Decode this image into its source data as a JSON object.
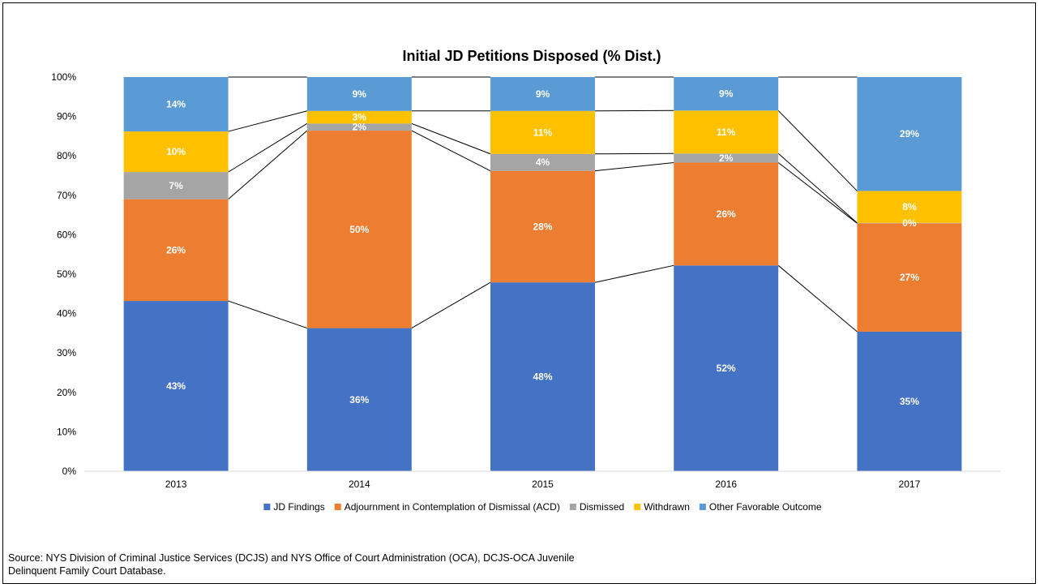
{
  "chart_data": {
    "type": "bar",
    "stacked": true,
    "title": "Initial JD Petitions Disposed (% Dist.)",
    "xlabel": "",
    "ylabel": "",
    "ylim": [
      0,
      100
    ],
    "y_ticks": [
      "0%",
      "10%",
      "20%",
      "30%",
      "40%",
      "50%",
      "60%",
      "70%",
      "80%",
      "90%",
      "100%"
    ],
    "categories": [
      "2013",
      "2014",
      "2015",
      "2016",
      "2017"
    ],
    "series": [
      {
        "name": "JD Findings",
        "color": "#4472C4",
        "values": [
          43.2,
          36.3,
          47.9,
          52.2,
          35.4
        ],
        "labels": [
          "43%",
          "36%",
          "48%",
          "52%",
          "35%"
        ]
      },
      {
        "name": "Adjournment in Contemplation of Dismissal (ACD)",
        "color": "#ED7D31",
        "values": [
          25.8,
          50.1,
          28.3,
          26.1,
          27.5
        ],
        "labels": [
          "26%",
          "50%",
          "28%",
          "26%",
          "27%"
        ]
      },
      {
        "name": "Dismissed",
        "color": "#A5A5A5",
        "values": [
          6.9,
          1.8,
          4.3,
          2.3,
          0.1
        ],
        "labels": [
          "7%",
          "2%",
          "4%",
          "2%",
          "0%"
        ]
      },
      {
        "name": "Withdrawn",
        "color": "#FFC000",
        "values": [
          10.3,
          3.2,
          10.9,
          10.9,
          8.1
        ],
        "labels": [
          "10%",
          "3%",
          "11%",
          "11%",
          "8%"
        ]
      },
      {
        "name": "Other Favorable Outcome",
        "color": "#5B9BD5",
        "values": [
          13.8,
          8.6,
          8.6,
          8.5,
          28.9
        ],
        "labels": [
          "14%",
          "9%",
          "9%",
          "9%",
          "29%"
        ]
      }
    ],
    "series_lines": true,
    "legend": "bottom"
  },
  "source_text": "Source: NYS Division of Criminal Justice Services (DCJS) and NYS Office of Court Administration (OCA), DCJS-OCA Juvenile Delinquent Family Court Database."
}
